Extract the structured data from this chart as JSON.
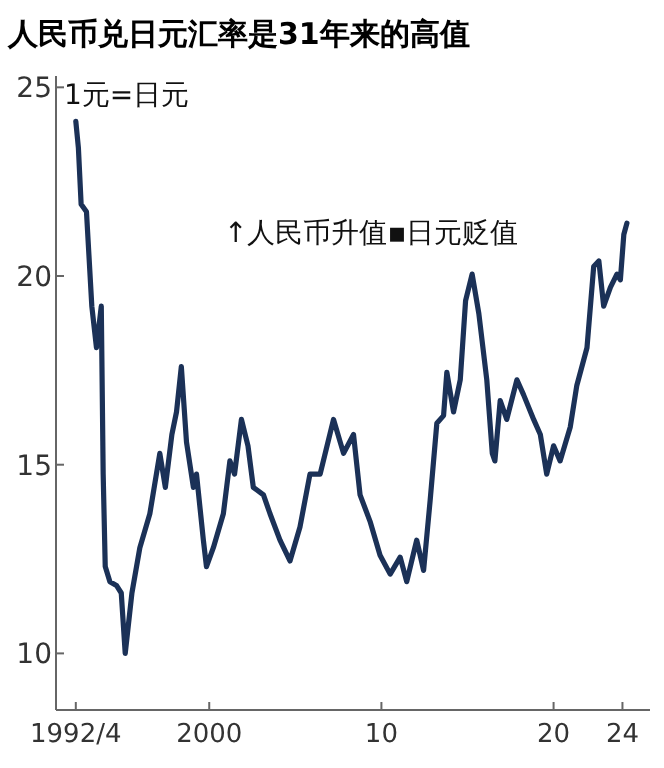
{
  "chart_data": {
    "type": "line",
    "title": "人民币兑日元汇率是31年来的高值",
    "annotations": [
      "1元=日元",
      "↑人民币升值▪日元贬值"
    ],
    "xlim": [
      1991.1,
      2025.6
    ],
    "xticks": [
      {
        "value": 1992.25,
        "label": "1992/4"
      },
      2000,
      {
        "value": 2010,
        "label": "10"
      },
      {
        "value": 2020,
        "label": "20"
      },
      {
        "value": 2024,
        "label": "24"
      }
    ],
    "ylim": [
      8.5,
      25.3
    ],
    "yticks": [
      10,
      15,
      20,
      25
    ],
    "grid": false,
    "marker": "none",
    "line_style": "solid",
    "series": [
      {
        "color": "#1b3157",
        "x": [
          1992.25,
          1992.4,
          1992.56,
          1992.87,
          1993.18,
          1993.45,
          1993.73,
          1993.84,
          1993.96,
          1994.23,
          1994.61,
          1994.89,
          1995.12,
          1995.51,
          1995.97,
          1996.55,
          1997.13,
          1997.45,
          1997.83,
          1998.1,
          1998.38,
          1998.68,
          1999.08,
          1999.26,
          1999.66,
          1999.84,
          2000.24,
          2000.82,
          2001.2,
          2001.47,
          2001.87,
          2002.25,
          2002.56,
          2003.15,
          2003.53,
          2004.11,
          2004.69,
          2005.27,
          2005.85,
          2006.44,
          2007.22,
          2007.8,
          2008.38,
          2008.76,
          2009.34,
          2009.92,
          2010.51,
          2011.09,
          2011.47,
          2012.05,
          2012.45,
          2012.83,
          2013.22,
          2013.61,
          2013.8,
          2014.19,
          2014.58,
          2014.89,
          2015.27,
          2015.66,
          2016.12,
          2016.44,
          2016.59,
          2016.9,
          2017.28,
          2017.87,
          2018.26,
          2018.84,
          2019.23,
          2019.6,
          2020.0,
          2020.38,
          2020.97,
          2021.35,
          2021.94,
          2022.33,
          2022.63,
          2022.91,
          2023.3,
          2023.68,
          2023.88,
          2024.08,
          2024.26
        ],
        "values": [
          24.1,
          23.4,
          21.9,
          21.7,
          19.2,
          18.1,
          19.2,
          14.75,
          12.3,
          11.9,
          11.8,
          11.6,
          10.0,
          11.6,
          12.8,
          13.7,
          15.3,
          14.4,
          15.8,
          16.4,
          17.6,
          15.6,
          14.4,
          14.75,
          13.0,
          12.3,
          12.8,
          13.7,
          15.1,
          14.75,
          16.2,
          15.5,
          14.4,
          14.2,
          13.7,
          13.0,
          12.45,
          13.35,
          14.75,
          14.75,
          16.2,
          15.3,
          15.8,
          14.2,
          13.5,
          12.6,
          12.1,
          12.55,
          11.9,
          13.0,
          12.2,
          14.05,
          16.1,
          16.3,
          17.45,
          16.4,
          17.25,
          19.35,
          20.05,
          19.0,
          17.25,
          15.3,
          15.1,
          16.7,
          16.2,
          17.25,
          16.85,
          16.2,
          15.8,
          14.75,
          15.5,
          15.1,
          16.0,
          17.1,
          18.1,
          20.25,
          20.4,
          19.2,
          19.7,
          20.05,
          19.9,
          21.1,
          21.4
        ]
      }
    ]
  }
}
